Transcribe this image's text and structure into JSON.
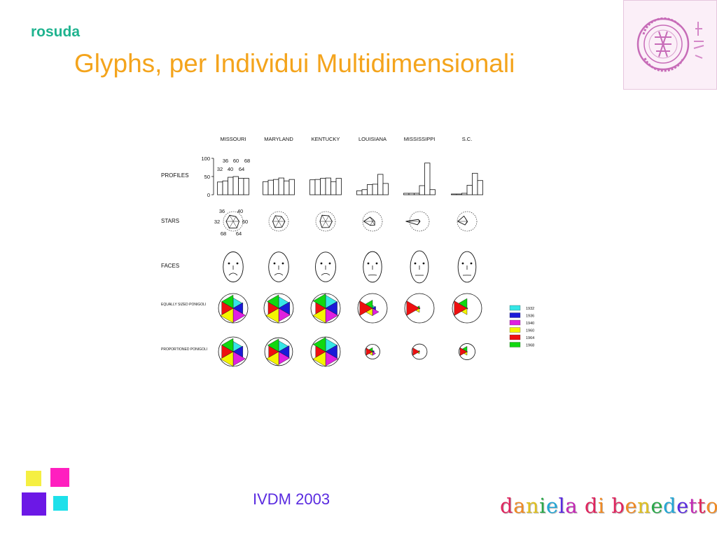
{
  "slide": {
    "brand": "rosuda",
    "title": "Glyphs, per Individui Multidimensionali",
    "footer": "IVDM 2003",
    "author": "daniela di benedetto",
    "colors": {
      "brand": "#1fb38f",
      "title": "#f4a41c",
      "footer": "#5a2be0"
    }
  },
  "chart_data": {
    "type": "other",
    "states": [
      "MISSOURI",
      "MARYLAND",
      "KENTUCKY",
      "LOUISIANA",
      "MISSISSIPPI",
      "S.C."
    ],
    "row_labels": [
      "PROFILES",
      "STARS",
      "FACES",
      "EQUALLY SIZED PONIGOLI",
      "PROPORTIONED PONIGOLI"
    ],
    "years": [
      "1932",
      "1936",
      "1940",
      "1960",
      "1964",
      "1968"
    ],
    "year_colors": [
      "#35e6e6",
      "#1a1ad8",
      "#e020e0",
      "#f5f500",
      "#ee1010",
      "#10d810"
    ],
    "profile_axis": {
      "ticks": [
        "0",
        "50",
        "100"
      ],
      "ylim": [
        0,
        100
      ]
    },
    "profile_key_labels": [
      "36",
      "60",
      "68",
      "32",
      "40",
      "64"
    ],
    "star_key_labels": [
      "36",
      "40",
      "32",
      "60",
      "68",
      "64"
    ],
    "values": [
      [
        35,
        38,
        48,
        50,
        45,
        45
      ],
      [
        36,
        40,
        42,
        46,
        38,
        42
      ],
      [
        41,
        42,
        45,
        46,
        36,
        45
      ],
      [
        11,
        14,
        28,
        29,
        56,
        31
      ],
      [
        4,
        4,
        4,
        25,
        87,
        14
      ],
      [
        2,
        2,
        4,
        26,
        59,
        39
      ]
    ],
    "proportioned_sizes": [
      1,
      0.95,
      1,
      0.5,
      0.52,
      0.55
    ]
  }
}
